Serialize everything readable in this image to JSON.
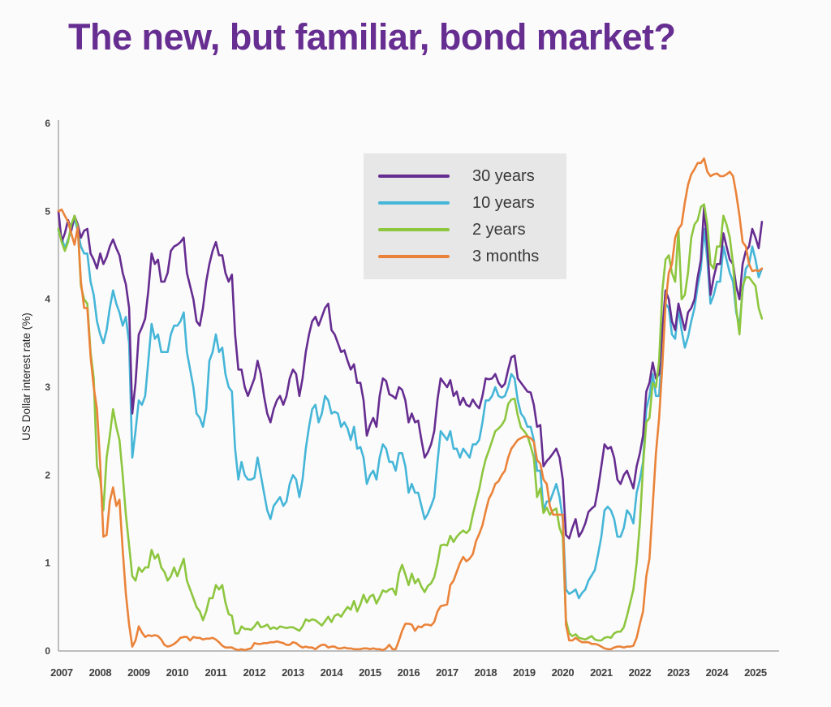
{
  "title": "The new, but familiar, bond market?",
  "colors": {
    "title": "#672e92",
    "legend_background": "#e8e7e7",
    "axis": "#a9a9a9",
    "tick_label": "#3f3f3f"
  },
  "chart_data": {
    "type": "line",
    "title": "The new, but familiar, bond market?",
    "xlabel": "",
    "ylabel": "US Dollar interest rate (%)",
    "ylim": [
      0,
      6
    ],
    "y_ticks": [
      0,
      1,
      2,
      3,
      4,
      5,
      6
    ],
    "x_ticks": [
      2007,
      2008,
      2009,
      2010,
      2011,
      2012,
      2013,
      2014,
      2015,
      2016,
      2017,
      2018,
      2019,
      2020,
      2021,
      2022,
      2023,
      2024,
      2025
    ],
    "x_frequency": "monthly",
    "x_range_years": [
      2007.0,
      2025.25
    ],
    "grid": false,
    "legend_position": "inside-top-center",
    "series": [
      {
        "name": "30 years",
        "color": "#662d91",
        "values": [
          5.0,
          4.65,
          4.75,
          4.9,
          4.78,
          4.95,
          4.85,
          4.7,
          4.78,
          4.8,
          4.52,
          4.45,
          4.35,
          4.52,
          4.4,
          4.48,
          4.6,
          4.68,
          4.58,
          4.5,
          4.3,
          4.17,
          3.9,
          2.7,
          3.05,
          3.6,
          3.68,
          3.78,
          4.1,
          4.52,
          4.4,
          4.45,
          4.2,
          4.2,
          4.3,
          4.55,
          4.6,
          4.62,
          4.65,
          4.7,
          4.3,
          4.15,
          4.0,
          3.75,
          3.7,
          3.9,
          4.2,
          4.4,
          4.55,
          4.65,
          4.5,
          4.5,
          4.3,
          4.2,
          4.28,
          3.6,
          3.2,
          3.2,
          3.0,
          2.9,
          3.0,
          3.1,
          3.3,
          3.15,
          2.9,
          2.7,
          2.6,
          2.75,
          2.85,
          2.9,
          2.8,
          2.9,
          3.1,
          3.2,
          3.15,
          2.9,
          3.1,
          3.4,
          3.6,
          3.75,
          3.8,
          3.7,
          3.8,
          3.9,
          3.95,
          3.65,
          3.6,
          3.5,
          3.4,
          3.42,
          3.3,
          3.2,
          3.26,
          3.05,
          3.05,
          2.85,
          2.45,
          2.57,
          2.65,
          2.55,
          2.9,
          3.1,
          3.07,
          2.92,
          2.9,
          2.87,
          3.0,
          2.97,
          2.85,
          2.6,
          2.7,
          2.6,
          2.62,
          2.4,
          2.2,
          2.26,
          2.35,
          2.5,
          2.86,
          3.1,
          3.05,
          3.0,
          3.08,
          2.9,
          2.95,
          2.8,
          2.88,
          2.8,
          2.78,
          2.86,
          2.8,
          2.76,
          2.9,
          3.1,
          3.09,
          3.1,
          3.15,
          3.05,
          3.0,
          3.04,
          3.2,
          3.34,
          3.36,
          3.1,
          3.05,
          3.0,
          2.95,
          2.94,
          2.8,
          2.55,
          2.57,
          2.1,
          2.16,
          2.2,
          2.25,
          2.3,
          2.2,
          1.95,
          1.32,
          1.28,
          1.4,
          1.5,
          1.3,
          1.36,
          1.45,
          1.58,
          1.62,
          1.65,
          1.85,
          2.1,
          2.35,
          2.3,
          2.32,
          2.2,
          1.95,
          1.9,
          2.0,
          2.05,
          1.95,
          1.85,
          2.1,
          2.25,
          2.45,
          2.95,
          3.05,
          3.28,
          3.1,
          3.15,
          3.65,
          4.1,
          4.0,
          3.75,
          3.65,
          3.95,
          3.8,
          3.65,
          3.85,
          3.9,
          4.0,
          4.25,
          4.45,
          5.05,
          4.6,
          4.05,
          4.25,
          4.4,
          4.4,
          4.75,
          4.6,
          4.45,
          4.4,
          4.15,
          4.0,
          4.4,
          4.55,
          4.6,
          4.8,
          4.7,
          4.58,
          4.88
        ]
      },
      {
        "name": "10 years",
        "color": "#45b6d8",
        "values": [
          4.78,
          4.7,
          4.58,
          4.68,
          4.78,
          4.92,
          4.78,
          4.6,
          4.52,
          4.52,
          4.2,
          4.05,
          3.75,
          3.6,
          3.5,
          3.65,
          3.9,
          4.1,
          3.95,
          3.85,
          3.7,
          3.8,
          3.5,
          2.2,
          2.5,
          2.85,
          2.8,
          2.9,
          3.3,
          3.72,
          3.55,
          3.6,
          3.4,
          3.4,
          3.4,
          3.6,
          3.7,
          3.7,
          3.75,
          3.85,
          3.4,
          3.2,
          3.0,
          2.7,
          2.65,
          2.55,
          2.75,
          3.3,
          3.4,
          3.6,
          3.4,
          3.45,
          3.15,
          3.0,
          2.95,
          2.3,
          1.95,
          2.15,
          2.0,
          1.95,
          1.95,
          1.97,
          2.2,
          2.0,
          1.8,
          1.6,
          1.5,
          1.65,
          1.7,
          1.75,
          1.65,
          1.7,
          1.9,
          2.0,
          1.95,
          1.75,
          1.95,
          2.3,
          2.55,
          2.75,
          2.8,
          2.6,
          2.7,
          2.9,
          2.85,
          2.7,
          2.72,
          2.7,
          2.55,
          2.6,
          2.53,
          2.4,
          2.55,
          2.3,
          2.32,
          2.2,
          1.9,
          2.0,
          2.05,
          1.95,
          2.2,
          2.35,
          2.3,
          2.15,
          2.15,
          2.05,
          2.25,
          2.25,
          2.1,
          1.8,
          1.9,
          1.8,
          1.8,
          1.65,
          1.5,
          1.56,
          1.65,
          1.75,
          2.15,
          2.5,
          2.45,
          2.4,
          2.5,
          2.3,
          2.3,
          2.2,
          2.3,
          2.25,
          2.2,
          2.35,
          2.35,
          2.4,
          2.6,
          2.85,
          2.85,
          2.9,
          3.0,
          2.9,
          2.88,
          2.9,
          3.0,
          3.15,
          3.1,
          2.85,
          2.7,
          2.65,
          2.55,
          2.55,
          2.4,
          2.05,
          2.05,
          1.6,
          1.7,
          1.7,
          1.8,
          1.9,
          1.75,
          1.5,
          0.7,
          0.65,
          0.67,
          0.7,
          0.6,
          0.66,
          0.7,
          0.8,
          0.86,
          0.92,
          1.1,
          1.3,
          1.6,
          1.64,
          1.6,
          1.5,
          1.3,
          1.3,
          1.4,
          1.6,
          1.55,
          1.45,
          1.8,
          1.95,
          2.15,
          2.75,
          2.9,
          3.15,
          2.9,
          2.9,
          3.5,
          3.95,
          3.9,
          3.6,
          3.55,
          3.9,
          3.65,
          3.45,
          3.57,
          3.75,
          3.9,
          4.15,
          4.35,
          4.8,
          4.45,
          3.95,
          4.05,
          4.2,
          4.2,
          4.6,
          4.45,
          4.3,
          4.2,
          3.85,
          3.7,
          4.1,
          4.35,
          4.4,
          4.6,
          4.45,
          4.25,
          4.35
        ]
      },
      {
        "name": "2 years",
        "color": "#8dc63f",
        "values": [
          4.8,
          4.65,
          4.55,
          4.65,
          4.85,
          4.95,
          4.82,
          4.15,
          4.0,
          3.95,
          3.4,
          3.1,
          2.1,
          1.95,
          1.6,
          2.2,
          2.45,
          2.75,
          2.55,
          2.4,
          2.0,
          1.55,
          1.2,
          0.85,
          0.8,
          0.95,
          0.9,
          0.95,
          0.95,
          1.15,
          1.05,
          1.1,
          0.95,
          0.9,
          0.8,
          0.85,
          0.95,
          0.85,
          0.95,
          1.05,
          0.8,
          0.7,
          0.6,
          0.5,
          0.45,
          0.35,
          0.45,
          0.6,
          0.6,
          0.75,
          0.7,
          0.75,
          0.55,
          0.42,
          0.4,
          0.2,
          0.2,
          0.28,
          0.25,
          0.25,
          0.24,
          0.28,
          0.33,
          0.27,
          0.28,
          0.3,
          0.25,
          0.27,
          0.25,
          0.28,
          0.27,
          0.26,
          0.27,
          0.27,
          0.25,
          0.23,
          0.28,
          0.36,
          0.34,
          0.36,
          0.35,
          0.32,
          0.29,
          0.34,
          0.39,
          0.33,
          0.4,
          0.42,
          0.39,
          0.45,
          0.5,
          0.47,
          0.57,
          0.45,
          0.53,
          0.64,
          0.55,
          0.62,
          0.64,
          0.54,
          0.61,
          0.69,
          0.67,
          0.7,
          0.71,
          0.64,
          0.88,
          0.98,
          0.87,
          0.75,
          0.88,
          0.77,
          0.82,
          0.73,
          0.67,
          0.74,
          0.77,
          0.84,
          1.0,
          1.2,
          1.21,
          1.2,
          1.31,
          1.24,
          1.3,
          1.34,
          1.37,
          1.34,
          1.38,
          1.55,
          1.7,
          1.84,
          2.03,
          2.18,
          2.28,
          2.39,
          2.5,
          2.53,
          2.57,
          2.63,
          2.81,
          2.86,
          2.87,
          2.68,
          2.54,
          2.5,
          2.45,
          2.33,
          2.2,
          1.75,
          1.85,
          1.57,
          1.63,
          1.55,
          1.6,
          1.62,
          1.4,
          1.3,
          0.35,
          0.2,
          0.17,
          0.19,
          0.15,
          0.14,
          0.13,
          0.15,
          0.17,
          0.13,
          0.12,
          0.12,
          0.15,
          0.16,
          0.15,
          0.2,
          0.22,
          0.22,
          0.27,
          0.4,
          0.55,
          0.7,
          1.0,
          1.45,
          2.1,
          2.6,
          2.65,
          3.05,
          3.0,
          3.3,
          4.1,
          4.45,
          4.5,
          4.3,
          4.2,
          4.8,
          4.0,
          4.05,
          4.3,
          4.7,
          4.85,
          4.9,
          5.05,
          5.08,
          4.85,
          4.4,
          4.35,
          4.6,
          4.6,
          4.95,
          4.85,
          4.7,
          4.4,
          3.9,
          3.6,
          4.15,
          4.25,
          4.25,
          4.2,
          4.15,
          3.9,
          3.78
        ]
      },
      {
        "name": "3 months",
        "color": "#ea8339",
        "values": [
          5.0,
          5.02,
          4.95,
          4.88,
          4.75,
          4.62,
          4.82,
          4.2,
          3.9,
          3.9,
          3.35,
          3.0,
          2.75,
          2.12,
          1.3,
          1.32,
          1.7,
          1.86,
          1.65,
          1.72,
          1.15,
          0.65,
          0.3,
          0.05,
          0.12,
          0.28,
          0.21,
          0.16,
          0.18,
          0.17,
          0.18,
          0.17,
          0.13,
          0.07,
          0.05,
          0.06,
          0.08,
          0.11,
          0.15,
          0.16,
          0.16,
          0.12,
          0.16,
          0.15,
          0.15,
          0.13,
          0.14,
          0.14,
          0.15,
          0.13,
          0.1,
          0.06,
          0.04,
          0.04,
          0.04,
          0.02,
          0.01,
          0.02,
          0.01,
          0.02,
          0.03,
          0.09,
          0.08,
          0.08,
          0.09,
          0.09,
          0.1,
          0.1,
          0.11,
          0.1,
          0.09,
          0.07,
          0.07,
          0.1,
          0.09,
          0.06,
          0.04,
          0.05,
          0.04,
          0.04,
          0.02,
          0.05,
          0.07,
          0.07,
          0.04,
          0.05,
          0.05,
          0.03,
          0.03,
          0.04,
          0.03,
          0.03,
          0.02,
          0.02,
          0.02,
          0.03,
          0.03,
          0.02,
          0.03,
          0.02,
          0.02,
          0.01,
          0.03,
          0.07,
          0.02,
          0.02,
          0.12,
          0.23,
          0.31,
          0.31,
          0.3,
          0.23,
          0.28,
          0.27,
          0.3,
          0.3,
          0.29,
          0.33,
          0.45,
          0.51,
          0.52,
          0.53,
          0.75,
          0.8,
          0.9,
          1.0,
          1.07,
          1.02,
          1.05,
          1.1,
          1.25,
          1.33,
          1.43,
          1.59,
          1.73,
          1.8,
          1.9,
          1.93,
          2.0,
          2.05,
          2.2,
          2.3,
          2.35,
          2.4,
          2.42,
          2.44,
          2.44,
          2.42,
          2.38,
          2.17,
          2.13,
          1.95,
          1.9,
          1.65,
          1.55,
          1.55,
          1.55,
          1.55,
          0.3,
          0.12,
          0.12,
          0.15,
          0.12,
          0.1,
          0.1,
          0.1,
          0.08,
          0.08,
          0.07,
          0.05,
          0.03,
          0.02,
          0.02,
          0.04,
          0.05,
          0.05,
          0.04,
          0.05,
          0.05,
          0.06,
          0.15,
          0.31,
          0.45,
          0.85,
          1.05,
          1.65,
          2.25,
          2.65,
          3.25,
          3.95,
          4.3,
          4.4,
          4.7,
          4.8,
          4.85,
          5.1,
          5.3,
          5.42,
          5.48,
          5.55,
          5.55,
          5.6,
          5.45,
          5.4,
          5.42,
          5.43,
          5.4,
          5.4,
          5.42,
          5.45,
          5.4,
          5.2,
          4.95,
          4.65,
          4.6,
          4.4,
          4.32,
          4.33,
          4.32,
          4.35
        ]
      }
    ]
  }
}
